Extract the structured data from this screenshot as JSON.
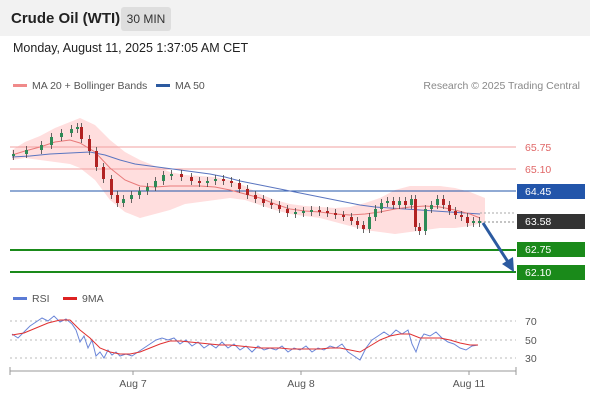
{
  "header": {
    "instrument": "Crude Oil (WTI)",
    "timeframe": "30 MIN"
  },
  "datetime": "Monday, August 11, 2025 1:37:05 AM CET",
  "legend": {
    "items": [
      {
        "label": "MA 20 + Bollinger Bands",
        "color": "#f08a8a"
      },
      {
        "label": "MA 50",
        "color": "#2c5aa0"
      }
    ],
    "credit": "Research © 2025 Trading Central"
  },
  "price_levels": [
    {
      "value": "65.75",
      "kind": "resistance"
    },
    {
      "value": "65.10",
      "kind": "resistance"
    },
    {
      "value": "64.45",
      "kind": "pivot"
    },
    {
      "value": "63.58",
      "kind": "last"
    },
    {
      "value": "62.75",
      "kind": "support"
    },
    {
      "value": "62.10",
      "kind": "support"
    }
  ],
  "rsi_panel": {
    "legend": [
      {
        "label": "RSI",
        "color": "#5b7bd5"
      },
      {
        "label": "9MA",
        "color": "#dd2222"
      }
    ],
    "levels": [
      "70",
      "50",
      "30"
    ]
  },
  "x_axis": {
    "labels": [
      "Aug 7",
      "Aug 8",
      "Aug 11"
    ]
  },
  "colors": {
    "resistance": "#e06666",
    "pivot": "#2255aa",
    "last": "#333333",
    "support": "#1a8a1a",
    "bull_candle": "#2e8b57",
    "bear_candle": "#b22222",
    "bands": "#ffd6d6",
    "arrow": "#2c5aa0"
  },
  "icons": {
    "forecast_arrow": "arrow-down-right-icon"
  }
}
